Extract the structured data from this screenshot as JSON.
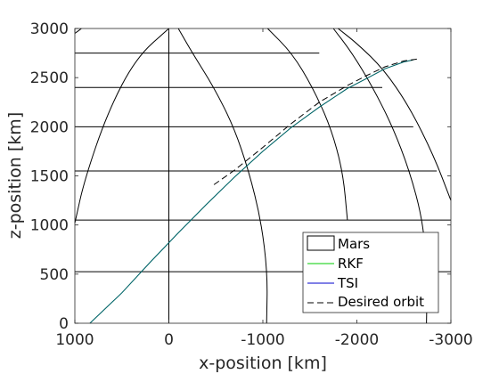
{
  "chart_data": {
    "type": "line",
    "title": "",
    "xlabel": "x-position [km]",
    "ylabel": "z-position [km]",
    "xlim": [
      1000,
      -3000
    ],
    "ylim": [
      0,
      3000
    ],
    "x_reversed": true,
    "xticks": [
      1000,
      0,
      -1000,
      -2000,
      -3000
    ],
    "xtick_labels": [
      "1000",
      "0",
      "-1000",
      "-2000",
      "-3000"
    ],
    "yticks": [
      0,
      500,
      1000,
      1500,
      2000,
      2500,
      3000
    ],
    "ytick_labels": [
      "0",
      "500",
      "1000",
      "1500",
      "2000",
      "2500",
      "3000"
    ],
    "grid": false,
    "legend_position": "bottom-right",
    "colors": {
      "rkf": "#00cc00",
      "tsi": "#0000cc",
      "desired": "#000000",
      "mars": "#000000"
    },
    "mars_parallels": [
      {
        "z": 525,
        "x_from": 1000,
        "x_to": -3000
      },
      {
        "z": 1050,
        "x_from": 1000,
        "x_to": -3000
      },
      {
        "z": 1550,
        "x_from": 1000,
        "x_to": -2850
      },
      {
        "z": 2000,
        "x_from": 1000,
        "x_to": -2600
      },
      {
        "z": 2400,
        "x_from": 1000,
        "x_to": -2270
      },
      {
        "z": 2750,
        "x_from": 1000,
        "x_to": -1600
      }
    ],
    "mars_meridians": [
      [
        [
          1000,
          1020
        ],
        [
          900,
          1450
        ],
        [
          650,
          2150
        ],
        [
          350,
          2700
        ],
        [
          0,
          3000
        ]
      ],
      [
        [
          0,
          0
        ],
        [
          0,
          3000
        ]
      ],
      [
        [
          -1040,
          0
        ],
        [
          -1050,
          500
        ],
        [
          -980,
          1050
        ],
        [
          -850,
          1550
        ],
        [
          -690,
          2000
        ],
        [
          -480,
          2400
        ],
        [
          -250,
          2750
        ],
        [
          -100,
          3000
        ]
      ],
      [
        [
          -1900,
          1050
        ],
        [
          -1850,
          1550
        ],
        [
          -1720,
          2000
        ],
        [
          -1530,
          2400
        ],
        [
          -1310,
          2750
        ],
        [
          -1050,
          3000
        ]
      ],
      [
        [
          -2740,
          0
        ],
        [
          -2750,
          500
        ],
        [
          -2700,
          1050
        ],
        [
          -2560,
          1550
        ],
        [
          -2380,
          2000
        ],
        [
          -2170,
          2400
        ],
        [
          -1950,
          2750
        ],
        [
          -1750,
          3000
        ]
      ],
      [
        [
          -3000,
          1250
        ],
        [
          -2820,
          1700
        ],
        [
          -2560,
          2200
        ],
        [
          -2290,
          2580
        ],
        [
          -2000,
          2850
        ],
        [
          -1800,
          3000
        ]
      ],
      [
        [
          930,
          3000
        ],
        [
          1000,
          2950
        ]
      ]
    ],
    "series": [
      {
        "name": "RKF",
        "x": [
          840,
          500,
          200,
          -100,
          -400,
          -700,
          -1000,
          -1300,
          -1600,
          -1900,
          -2100,
          -2300,
          -2500,
          -2600
        ],
        "y": [
          0,
          310,
          620,
          920,
          1210,
          1490,
          1750,
          1990,
          2200,
          2390,
          2490,
          2590,
          2660,
          2680
        ]
      },
      {
        "name": "TSI",
        "x": [
          840,
          500,
          200,
          -100,
          -400,
          -700,
          -1000,
          -1300,
          -1600,
          -1900,
          -2100,
          -2300,
          -2500,
          -2600
        ],
        "y": [
          0,
          310,
          620,
          920,
          1210,
          1490,
          1750,
          1990,
          2200,
          2390,
          2490,
          2590,
          2660,
          2680
        ]
      },
      {
        "name": "Desired orbit",
        "x": [
          -480,
          -700,
          -1000,
          -1300,
          -1600,
          -1900,
          -2100,
          -2300,
          -2500,
          -2650
        ],
        "y": [
          1410,
          1560,
          1790,
          2030,
          2250,
          2420,
          2520,
          2610,
          2670,
          2690
        ]
      }
    ],
    "legend": [
      "Mars",
      "RKF",
      "TSI",
      "Desired orbit"
    ]
  }
}
